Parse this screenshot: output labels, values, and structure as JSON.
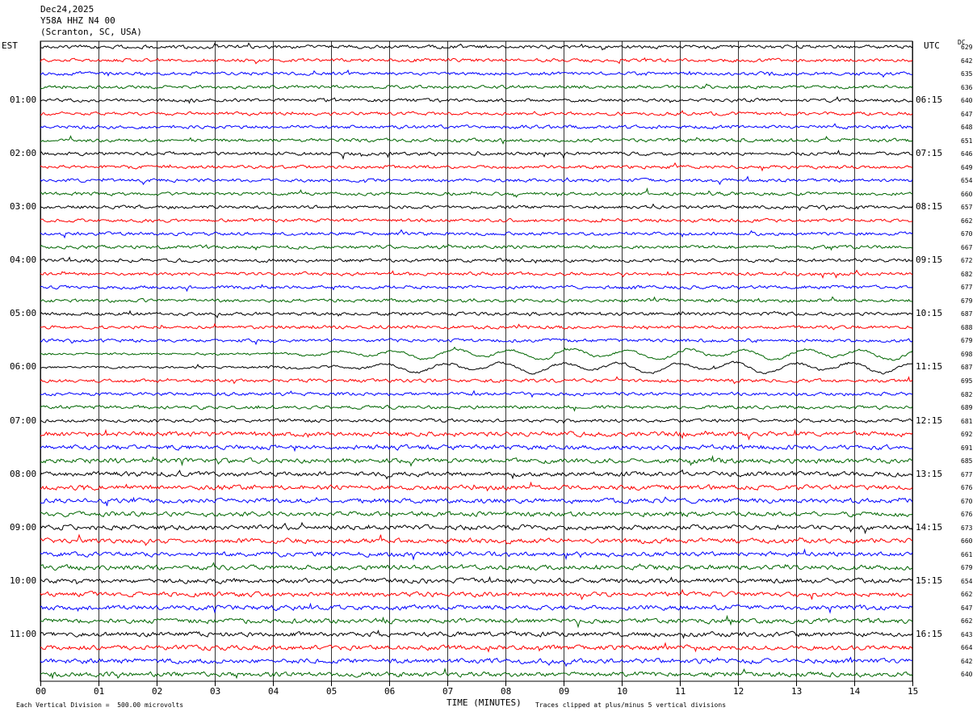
{
  "header": {
    "date": "Dec24,2025",
    "station": "Y58A HHZ N4 00",
    "location": "(Scranton, SC, USA)"
  },
  "labels": {
    "left_zone": "EST",
    "right_zone": "UTC",
    "dc": "DC",
    "xlabel": "TIME (MINUTES)",
    "scale_note": "Each Vertical Division =  500.00 microvolts",
    "clip_note": "Traces clipped at plus/minus 5 vertical divisions"
  },
  "colors": {
    "cycle": [
      "#000000",
      "#ff0000",
      "#0000ff",
      "#006600"
    ],
    "grid": "#000000"
  },
  "chart_data": {
    "type": "line",
    "title": "",
    "xlabel": "TIME (MINUTES)",
    "xlim": [
      0,
      15
    ],
    "x_ticks": [
      "00",
      "01",
      "02",
      "03",
      "04",
      "05",
      "06",
      "07",
      "08",
      "09",
      "10",
      "11",
      "12",
      "13",
      "14",
      "15"
    ],
    "left_hour_labels": [
      "01:00",
      "02:00",
      "03:00",
      "04:00",
      "05:00",
      "06:00",
      "07:00",
      "08:00",
      "09:00",
      "10:00",
      "11:00"
    ],
    "right_hour_labels": [
      "06:15",
      "07:15",
      "08:15",
      "09:15",
      "10:15",
      "11:15",
      "12:15",
      "13:15",
      "14:15",
      "15:15",
      "16:15"
    ],
    "trace_count": 48,
    "dc_offsets": [
      629,
      642,
      635,
      636,
      640,
      647,
      648,
      651,
      646,
      649,
      654,
      660,
      657,
      662,
      670,
      667,
      672,
      682,
      677,
      679,
      687,
      688,
      679,
      698,
      687,
      695,
      682,
      689,
      681,
      692,
      691,
      685,
      677,
      676,
      670,
      676,
      673,
      660,
      661,
      679,
      654,
      662,
      647,
      662,
      643,
      664,
      642,
      640
    ],
    "trace_amplitude_level": [
      2,
      2,
      2,
      2,
      2,
      2,
      2,
      2,
      2,
      2,
      2,
      2,
      2,
      2,
      2,
      2,
      2,
      2,
      2,
      2,
      2,
      2,
      2,
      4,
      4,
      2,
      2,
      2,
      2,
      3,
      3,
      3,
      3,
      3,
      3,
      3,
      3,
      3,
      3,
      3,
      3,
      3,
      3,
      3,
      3,
      3,
      3,
      3
    ],
    "teleseism_rows": [
      23,
      24
    ]
  }
}
